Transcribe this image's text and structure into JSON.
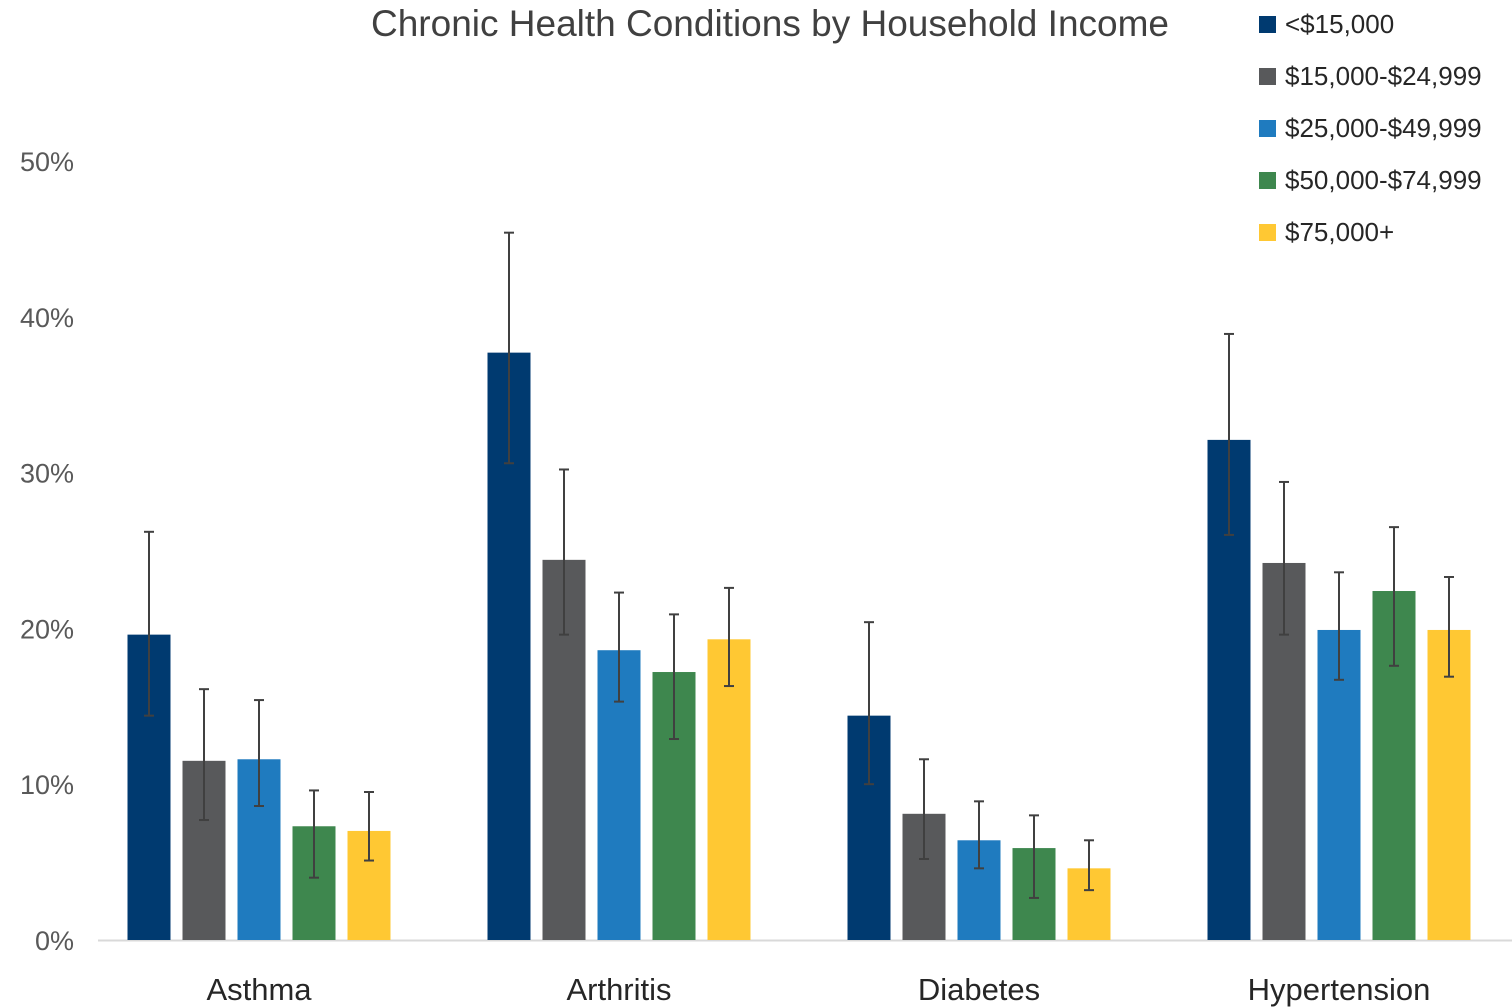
{
  "chart_data": {
    "type": "bar",
    "title": "Chronic Health Conditions by Household Income",
    "categories": [
      "Asthma",
      "Arthritis",
      "Diabetes",
      "Hypertension"
    ],
    "series": [
      {
        "name": "<$15,000",
        "color": "#003A70",
        "values": [
          19.6,
          37.7,
          14.4,
          32.1
        ],
        "err_low": [
          14.4,
          30.6,
          10.0,
          26.0
        ],
        "err_high": [
          26.2,
          45.4,
          20.4,
          38.9
        ]
      },
      {
        "name": "$15,000-$24,999",
        "color": "#58595B",
        "values": [
          11.5,
          24.4,
          8.1,
          24.2
        ],
        "err_low": [
          7.7,
          19.6,
          5.2,
          19.6
        ],
        "err_high": [
          16.1,
          30.2,
          11.6,
          29.4
        ]
      },
      {
        "name": "$25,000-$49,999",
        "color": "#1F7BBF",
        "values": [
          11.6,
          18.6,
          6.4,
          19.9
        ],
        "err_low": [
          8.6,
          15.3,
          4.6,
          16.7
        ],
        "err_high": [
          15.4,
          22.3,
          8.9,
          23.6
        ]
      },
      {
        "name": "$50,000-$74,999",
        "color": "#3E874E",
        "values": [
          7.3,
          17.2,
          5.9,
          22.4
        ],
        "err_low": [
          4.0,
          12.9,
          2.7,
          17.6
        ],
        "err_high": [
          9.6,
          20.9,
          8.0,
          26.5
        ]
      },
      {
        "name": "$75,000+",
        "color": "#FFC833",
        "values": [
          7.0,
          19.3,
          4.6,
          19.9
        ],
        "err_low": [
          5.1,
          16.3,
          3.2,
          16.9
        ],
        "err_high": [
          9.5,
          22.6,
          6.4,
          23.3
        ]
      }
    ],
    "ylim": [
      0,
      50
    ],
    "yticks": [
      "0%",
      "10%",
      "20%",
      "30%",
      "40%",
      "50%"
    ],
    "ytick_values": [
      0,
      10,
      20,
      30,
      40,
      50
    ],
    "grid": false,
    "legend_position": "top-right"
  }
}
